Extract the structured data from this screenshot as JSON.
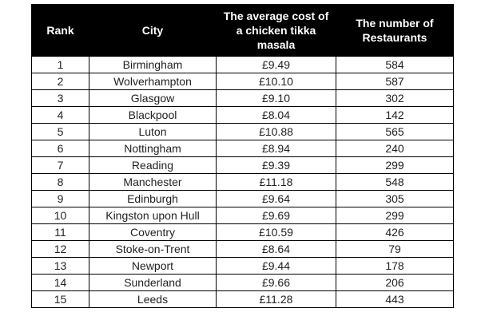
{
  "table": {
    "headers": {
      "rank": "Rank",
      "city": "City",
      "cost": "The average cost of a chicken tikka masala",
      "restaurants": "The number of Restaurants"
    },
    "rows": [
      {
        "rank": "1",
        "city": "Birmingham",
        "cost": "£9.49",
        "restaurants": "584"
      },
      {
        "rank": "2",
        "city": "Wolverhampton",
        "cost": "£10.10",
        "restaurants": "587"
      },
      {
        "rank": "3",
        "city": "Glasgow",
        "cost": "£9.10",
        "restaurants": "302"
      },
      {
        "rank": "4",
        "city": "Blackpool",
        "cost": "£8.04",
        "restaurants": "142"
      },
      {
        "rank": "5",
        "city": "Luton",
        "cost": "£10.88",
        "restaurants": "565"
      },
      {
        "rank": "6",
        "city": "Nottingham",
        "cost": "£8.94",
        "restaurants": "240"
      },
      {
        "rank": "7",
        "city": "Reading",
        "cost": "£9.39",
        "restaurants": "299"
      },
      {
        "rank": "8",
        "city": "Manchester",
        "cost": "£11.18",
        "restaurants": "548"
      },
      {
        "rank": "9",
        "city": "Edinburgh",
        "cost": "£9.64",
        "restaurants": "305"
      },
      {
        "rank": "10",
        "city": "Kingston upon Hull",
        "cost": "£9.69",
        "restaurants": "299"
      },
      {
        "rank": "11",
        "city": "Coventry",
        "cost": "£10.59",
        "restaurants": "426"
      },
      {
        "rank": "12",
        "city": "Stoke-on-Trent",
        "cost": "£8.64",
        "restaurants": "79"
      },
      {
        "rank": "13",
        "city": "Newport",
        "cost": "£9.44",
        "restaurants": "178"
      },
      {
        "rank": "14",
        "city": "Sunderland",
        "cost": "£9.66",
        "restaurants": "206"
      },
      {
        "rank": "15",
        "city": "Leeds",
        "cost": "£11.28",
        "restaurants": "443"
      }
    ]
  }
}
